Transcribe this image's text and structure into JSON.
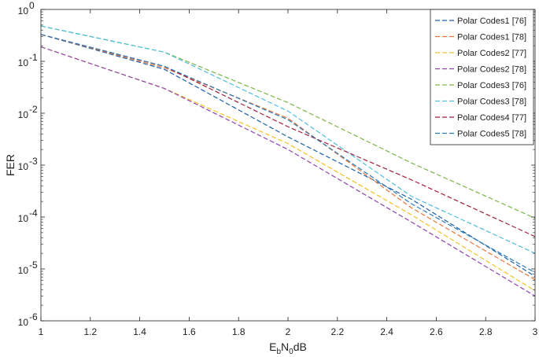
{
  "chart_data": {
    "type": "line",
    "title": "",
    "xlabel_parts": [
      "E",
      "b",
      "N",
      "0",
      "dB"
    ],
    "ylabel": "FER",
    "y_scale": "log",
    "xlim": [
      1,
      3
    ],
    "ylim_exponents": [
      -6,
      0
    ],
    "x_ticks": [
      "1",
      "1.2",
      "1.4",
      "1.6",
      "1.8",
      "2",
      "2.2",
      "2.4",
      "2.6",
      "2.8",
      "3"
    ],
    "y_ticks": [
      {
        "base": "10",
        "exp": "0"
      },
      {
        "base": "10",
        "exp": "-1"
      },
      {
        "base": "10",
        "exp": "-2"
      },
      {
        "base": "10",
        "exp": "-3"
      },
      {
        "base": "10",
        "exp": "-4"
      },
      {
        "base": "10",
        "exp": "-5"
      },
      {
        "base": "10",
        "exp": "-6"
      }
    ],
    "grid": false,
    "legend_position": "top-right",
    "line_style": "dashed",
    "series": [
      {
        "name": "Polar Codes1 [76]",
        "color": "#1f5fa8",
        "points": [
          [
            1,
            0.33
          ],
          [
            1.5,
            0.07
          ],
          [
            2,
            0.0035
          ],
          [
            2.5,
            0.00022
          ],
          [
            3,
            7.2e-06
          ]
        ]
      },
      {
        "name": "Polar Codes1 [78]",
        "color": "#e8763a",
        "points": [
          [
            1,
            0.33
          ],
          [
            1.5,
            0.075
          ],
          [
            2,
            0.008
          ],
          [
            2.5,
            0.00015
          ],
          [
            3,
            6.2e-06
          ]
        ]
      },
      {
        "name": "Polar Codes2 [77]",
        "color": "#f2c12a",
        "points": [
          [
            1,
            0.19
          ],
          [
            1.5,
            0.03
          ],
          [
            2,
            0.0026
          ],
          [
            2.5,
            0.00011
          ],
          [
            3,
            3.8e-06
          ]
        ]
      },
      {
        "name": "Polar Codes2 [78]",
        "color": "#8e44ad",
        "points": [
          [
            1,
            0.19
          ],
          [
            1.5,
            0.03
          ],
          [
            2,
            0.002
          ],
          [
            2.5,
            8e-05
          ],
          [
            3,
            3e-06
          ]
        ]
      },
      {
        "name": "Polar Codes3 [76]",
        "color": "#7ab648",
        "points": [
          [
            1,
            0.48
          ],
          [
            1.5,
            0.15
          ],
          [
            2,
            0.016
          ],
          [
            2.5,
            0.0011
          ],
          [
            3,
            9.5e-05
          ]
        ]
      },
      {
        "name": "Polar Codes3 [78]",
        "color": "#4dbedf",
        "points": [
          [
            1,
            0.48
          ],
          [
            1.5,
            0.15
          ],
          [
            2,
            0.011
          ],
          [
            2.5,
            0.00025
          ],
          [
            3,
            2e-05
          ]
        ]
      },
      {
        "name": "Polar Codes4 [77]",
        "color": "#a3203c",
        "points": [
          [
            1,
            0.33
          ],
          [
            1.5,
            0.08
          ],
          [
            2,
            0.0055
          ],
          [
            2.5,
            0.00052
          ],
          [
            3,
            4.2e-05
          ]
        ]
      },
      {
        "name": "Polar Codes5 [78]",
        "color": "#2a7ab8",
        "points": [
          [
            1,
            0.33
          ],
          [
            1.5,
            0.08
          ],
          [
            2,
            0.0075
          ],
          [
            2.5,
            0.00018
          ],
          [
            3,
            8.5e-06
          ]
        ]
      }
    ]
  }
}
